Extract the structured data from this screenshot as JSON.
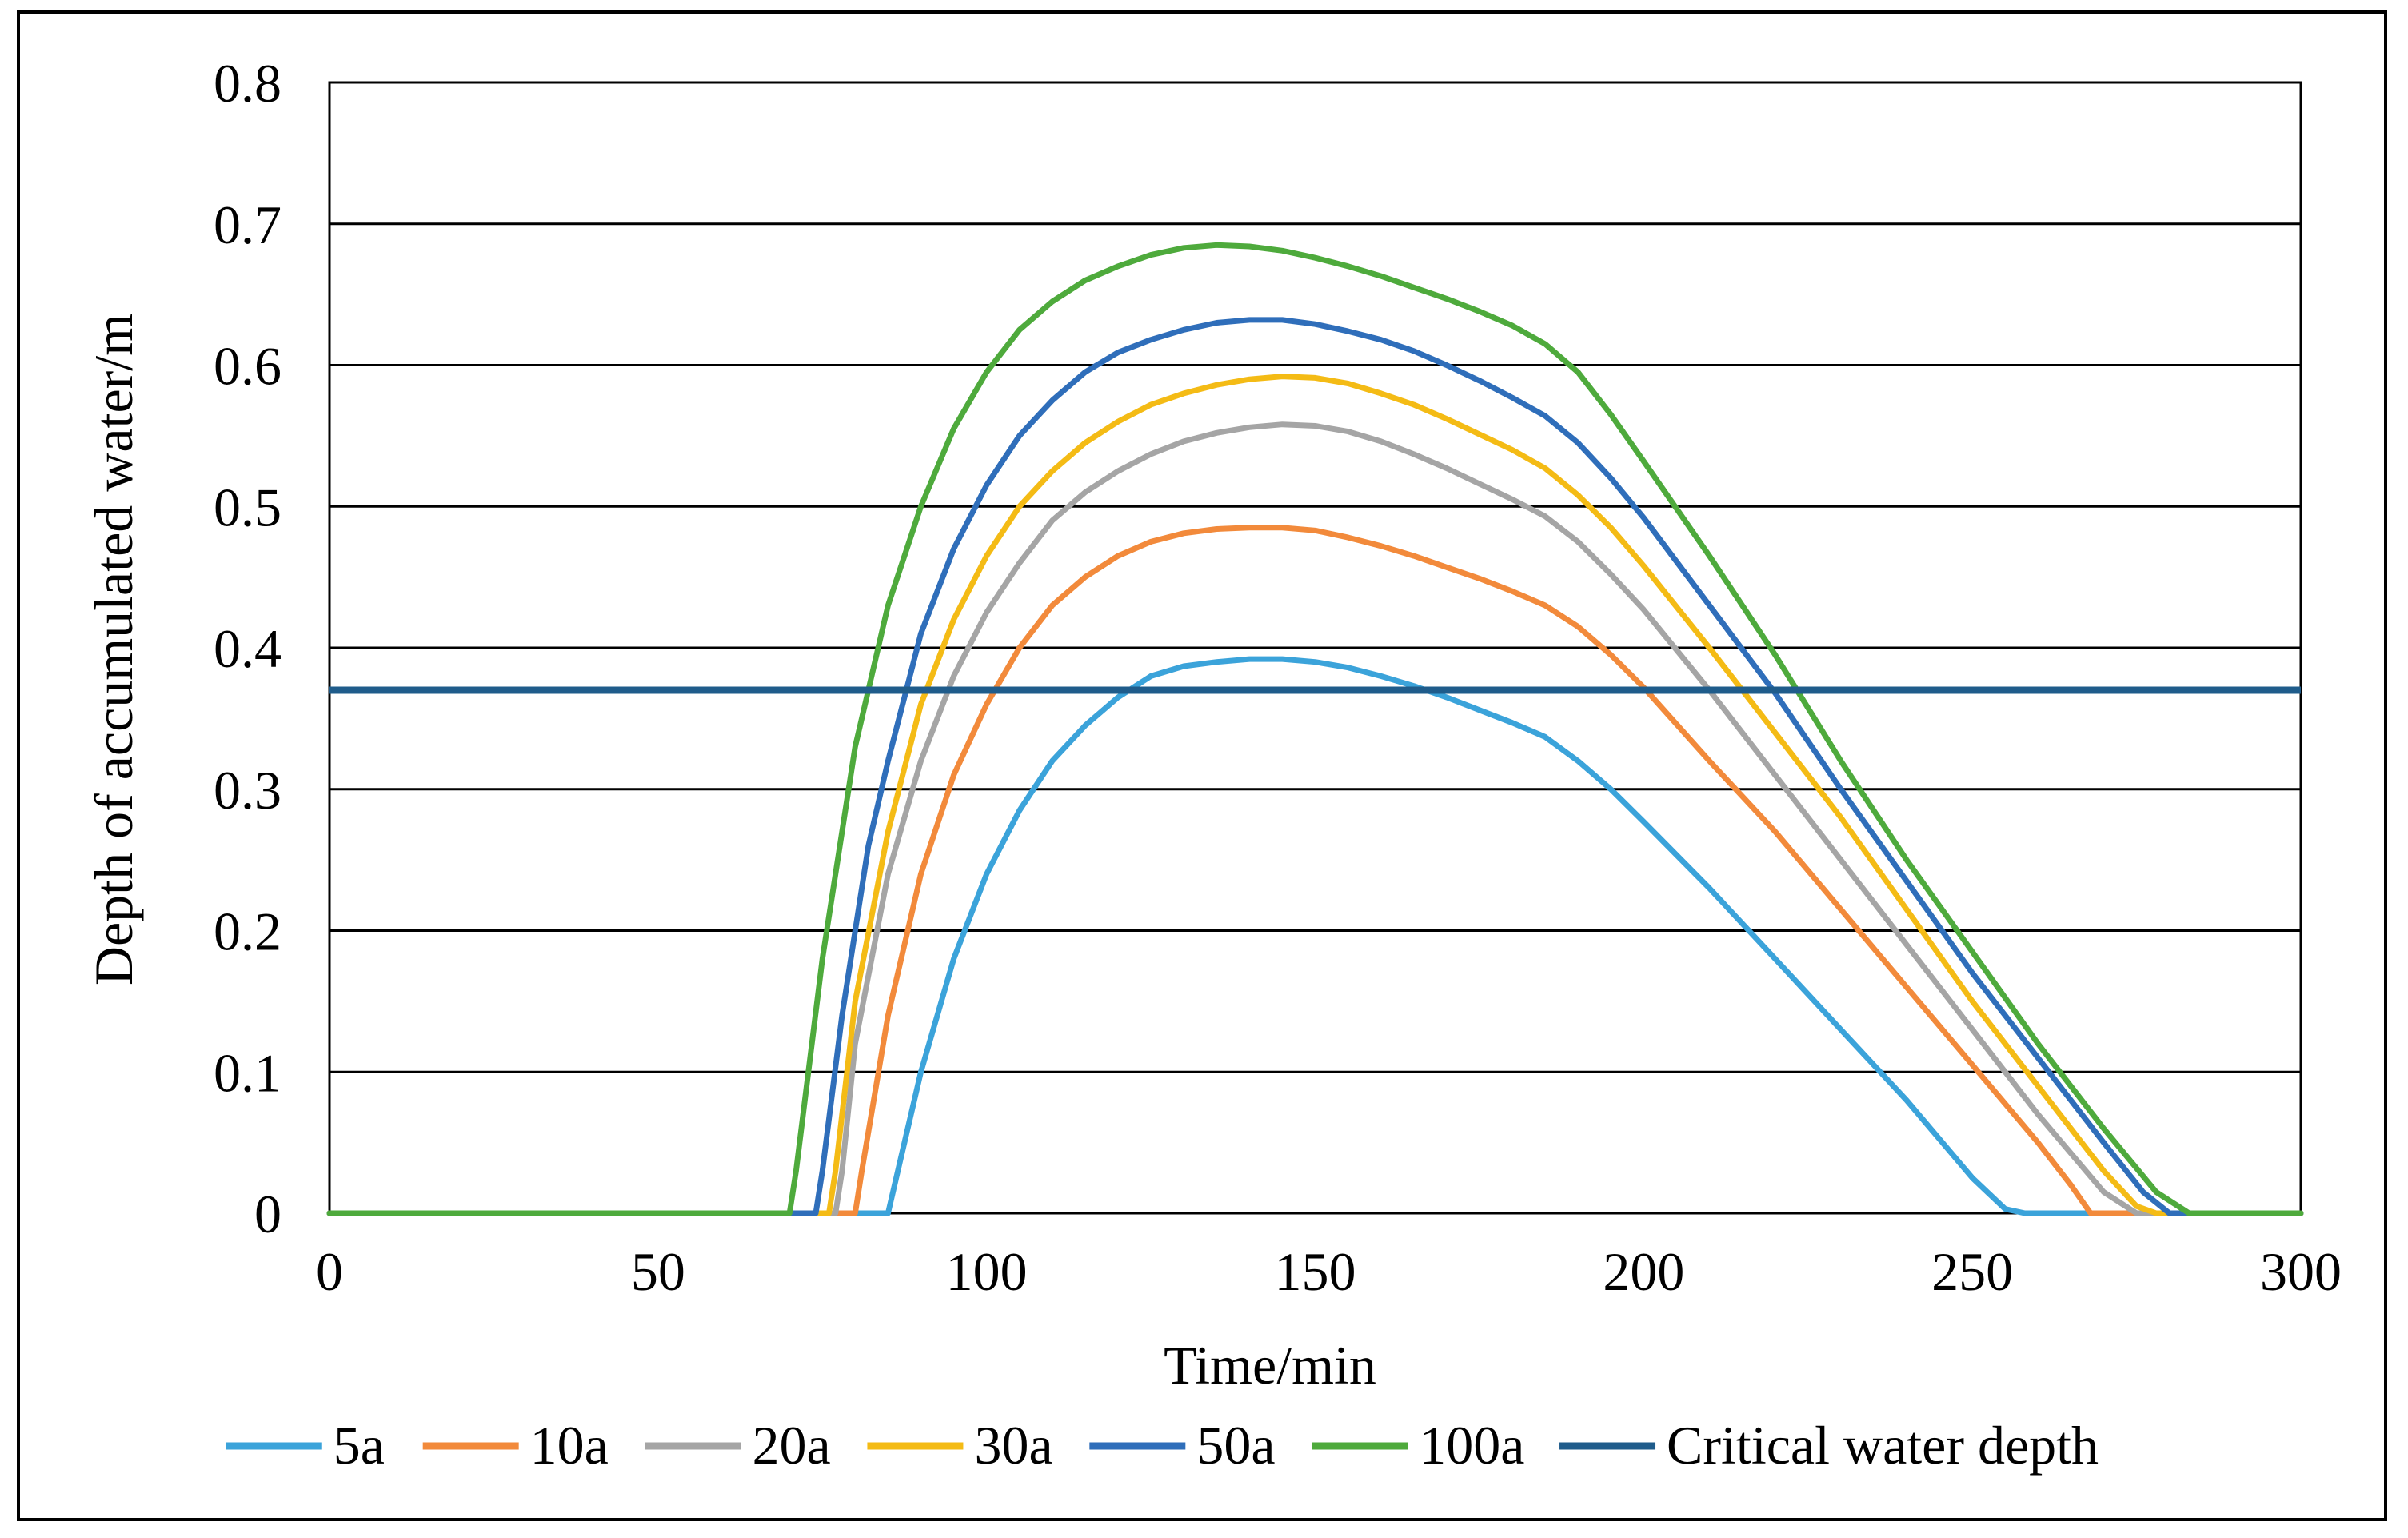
{
  "chart_data": {
    "type": "line",
    "title": "",
    "xlabel": "Time/min",
    "ylabel": "Depth of accumulated water/m",
    "xlim": [
      0,
      300
    ],
    "ylim": [
      0,
      0.8
    ],
    "x_ticks": [
      0,
      50,
      100,
      150,
      200,
      250,
      300
    ],
    "y_ticks": [
      0,
      0.1,
      0.2,
      0.3,
      0.4,
      0.5,
      0.6,
      0.7,
      0.8
    ],
    "x_tick_labels": [
      "0",
      "50",
      "100",
      "150",
      "200",
      "250",
      "300"
    ],
    "y_tick_labels": [
      "0",
      "0.1",
      "0.2",
      "0.3",
      "0.4",
      "0.5",
      "0.6",
      "0.7",
      "0.8"
    ],
    "grid": "horizontal",
    "legend_position": "bottom",
    "series": [
      {
        "name": "5a",
        "color": "#3BA3DA",
        "points": [
          [
            0,
            0
          ],
          [
            85,
            0
          ],
          [
            87,
            0.04
          ],
          [
            90,
            0.1
          ],
          [
            95,
            0.18
          ],
          [
            100,
            0.24
          ],
          [
            105,
            0.285
          ],
          [
            110,
            0.32
          ],
          [
            115,
            0.345
          ],
          [
            120,
            0.365
          ],
          [
            125,
            0.38
          ],
          [
            130,
            0.387
          ],
          [
            135,
            0.39
          ],
          [
            140,
            0.392
          ],
          [
            145,
            0.392
          ],
          [
            150,
            0.39
          ],
          [
            155,
            0.386
          ],
          [
            160,
            0.38
          ],
          [
            165,
            0.373
          ],
          [
            170,
            0.365
          ],
          [
            175,
            0.356
          ],
          [
            180,
            0.347
          ],
          [
            185,
            0.337
          ],
          [
            190,
            0.32
          ],
          [
            195,
            0.3
          ],
          [
            200,
            0.277
          ],
          [
            210,
            0.23
          ],
          [
            220,
            0.18
          ],
          [
            230,
            0.13
          ],
          [
            240,
            0.08
          ],
          [
            250,
            0.025
          ],
          [
            255,
            0.003
          ],
          [
            258,
            0
          ],
          [
            300,
            0
          ]
        ]
      },
      {
        "name": "10a",
        "color": "#F28A3B",
        "points": [
          [
            0,
            0
          ],
          [
            80,
            0
          ],
          [
            81,
            0.03
          ],
          [
            85,
            0.14
          ],
          [
            90,
            0.24
          ],
          [
            95,
            0.31
          ],
          [
            100,
            0.36
          ],
          [
            105,
            0.4
          ],
          [
            110,
            0.43
          ],
          [
            115,
            0.45
          ],
          [
            120,
            0.465
          ],
          [
            125,
            0.475
          ],
          [
            130,
            0.481
          ],
          [
            135,
            0.484
          ],
          [
            140,
            0.485
          ],
          [
            145,
            0.485
          ],
          [
            150,
            0.483
          ],
          [
            155,
            0.478
          ],
          [
            160,
            0.472
          ],
          [
            165,
            0.465
          ],
          [
            170,
            0.457
          ],
          [
            175,
            0.449
          ],
          [
            180,
            0.44
          ],
          [
            185,
            0.43
          ],
          [
            190,
            0.415
          ],
          [
            195,
            0.395
          ],
          [
            200,
            0.372
          ],
          [
            210,
            0.32
          ],
          [
            220,
            0.27
          ],
          [
            230,
            0.215
          ],
          [
            240,
            0.16
          ],
          [
            250,
            0.105
          ],
          [
            260,
            0.05
          ],
          [
            265,
            0.02
          ],
          [
            268,
            0
          ],
          [
            300,
            0
          ]
        ]
      },
      {
        "name": "20a",
        "color": "#A5A5A5",
        "points": [
          [
            0,
            0
          ],
          [
            77,
            0
          ],
          [
            78,
            0.03
          ],
          [
            80,
            0.12
          ],
          [
            85,
            0.24
          ],
          [
            90,
            0.32
          ],
          [
            95,
            0.38
          ],
          [
            100,
            0.425
          ],
          [
            105,
            0.46
          ],
          [
            110,
            0.49
          ],
          [
            115,
            0.51
          ],
          [
            120,
            0.525
          ],
          [
            125,
            0.537
          ],
          [
            130,
            0.546
          ],
          [
            135,
            0.552
          ],
          [
            140,
            0.556
          ],
          [
            145,
            0.558
          ],
          [
            150,
            0.557
          ],
          [
            155,
            0.553
          ],
          [
            160,
            0.546
          ],
          [
            165,
            0.537
          ],
          [
            170,
            0.527
          ],
          [
            175,
            0.516
          ],
          [
            180,
            0.505
          ],
          [
            185,
            0.493
          ],
          [
            190,
            0.475
          ],
          [
            195,
            0.452
          ],
          [
            200,
            0.427
          ],
          [
            210,
            0.37
          ],
          [
            220,
            0.31
          ],
          [
            230,
            0.25
          ],
          [
            240,
            0.19
          ],
          [
            250,
            0.13
          ],
          [
            260,
            0.07
          ],
          [
            270,
            0.015
          ],
          [
            275,
            0
          ],
          [
            300,
            0
          ]
        ]
      },
      {
        "name": "30a",
        "color": "#F4BB15",
        "points": [
          [
            0,
            0
          ],
          [
            76,
            0
          ],
          [
            77,
            0.03
          ],
          [
            80,
            0.15
          ],
          [
            85,
            0.27
          ],
          [
            90,
            0.36
          ],
          [
            95,
            0.42
          ],
          [
            100,
            0.465
          ],
          [
            105,
            0.5
          ],
          [
            110,
            0.525
          ],
          [
            115,
            0.545
          ],
          [
            120,
            0.56
          ],
          [
            125,
            0.572
          ],
          [
            130,
            0.58
          ],
          [
            135,
            0.586
          ],
          [
            140,
            0.59
          ],
          [
            145,
            0.592
          ],
          [
            150,
            0.591
          ],
          [
            155,
            0.587
          ],
          [
            160,
            0.58
          ],
          [
            165,
            0.572
          ],
          [
            170,
            0.562
          ],
          [
            175,
            0.551
          ],
          [
            180,
            0.54
          ],
          [
            185,
            0.527
          ],
          [
            190,
            0.508
          ],
          [
            195,
            0.485
          ],
          [
            200,
            0.458
          ],
          [
            210,
            0.4
          ],
          [
            220,
            0.34
          ],
          [
            230,
            0.28
          ],
          [
            240,
            0.215
          ],
          [
            250,
            0.15
          ],
          [
            260,
            0.09
          ],
          [
            270,
            0.03
          ],
          [
            275,
            0.005
          ],
          [
            278,
            0
          ],
          [
            300,
            0
          ]
        ]
      },
      {
        "name": "50a",
        "color": "#2F6EBA",
        "points": [
          [
            0,
            0
          ],
          [
            74,
            0
          ],
          [
            75,
            0.03
          ],
          [
            78,
            0.14
          ],
          [
            82,
            0.26
          ],
          [
            85,
            0.32
          ],
          [
            90,
            0.41
          ],
          [
            95,
            0.47
          ],
          [
            100,
            0.515
          ],
          [
            105,
            0.55
          ],
          [
            110,
            0.575
          ],
          [
            115,
            0.595
          ],
          [
            120,
            0.609
          ],
          [
            125,
            0.618
          ],
          [
            130,
            0.625
          ],
          [
            135,
            0.63
          ],
          [
            140,
            0.632
          ],
          [
            145,
            0.632
          ],
          [
            150,
            0.629
          ],
          [
            155,
            0.624
          ],
          [
            160,
            0.618
          ],
          [
            165,
            0.61
          ],
          [
            170,
            0.6
          ],
          [
            175,
            0.589
          ],
          [
            180,
            0.577
          ],
          [
            185,
            0.564
          ],
          [
            190,
            0.545
          ],
          [
            195,
            0.52
          ],
          [
            200,
            0.492
          ],
          [
            210,
            0.43
          ],
          [
            220,
            0.368
          ],
          [
            230,
            0.3
          ],
          [
            240,
            0.235
          ],
          [
            250,
            0.17
          ],
          [
            260,
            0.11
          ],
          [
            270,
            0.05
          ],
          [
            276,
            0.015
          ],
          [
            280,
            0
          ],
          [
            300,
            0
          ]
        ]
      },
      {
        "name": "100a",
        "color": "#4EAA3C",
        "points": [
          [
            0,
            0
          ],
          [
            70,
            0
          ],
          [
            71,
            0.03
          ],
          [
            75,
            0.18
          ],
          [
            80,
            0.33
          ],
          [
            85,
            0.43
          ],
          [
            90,
            0.5
          ],
          [
            95,
            0.555
          ],
          [
            100,
            0.595
          ],
          [
            105,
            0.625
          ],
          [
            110,
            0.645
          ],
          [
            115,
            0.66
          ],
          [
            120,
            0.67
          ],
          [
            125,
            0.678
          ],
          [
            130,
            0.683
          ],
          [
            135,
            0.685
          ],
          [
            140,
            0.684
          ],
          [
            145,
            0.681
          ],
          [
            150,
            0.676
          ],
          [
            155,
            0.67
          ],
          [
            160,
            0.663
          ],
          [
            165,
            0.655
          ],
          [
            170,
            0.647
          ],
          [
            175,
            0.638
          ],
          [
            180,
            0.628
          ],
          [
            185,
            0.615
          ],
          [
            190,
            0.595
          ],
          [
            195,
            0.565
          ],
          [
            200,
            0.532
          ],
          [
            210,
            0.465
          ],
          [
            220,
            0.395
          ],
          [
            230,
            0.32
          ],
          [
            240,
            0.25
          ],
          [
            250,
            0.185
          ],
          [
            260,
            0.12
          ],
          [
            270,
            0.06
          ],
          [
            278,
            0.015
          ],
          [
            283,
            0
          ],
          [
            300,
            0
          ]
        ]
      },
      {
        "name": "Critical water depth",
        "color": "#1F5C8B",
        "points": [
          [
            0,
            0.37
          ],
          [
            300,
            0.37
          ]
        ]
      }
    ]
  }
}
